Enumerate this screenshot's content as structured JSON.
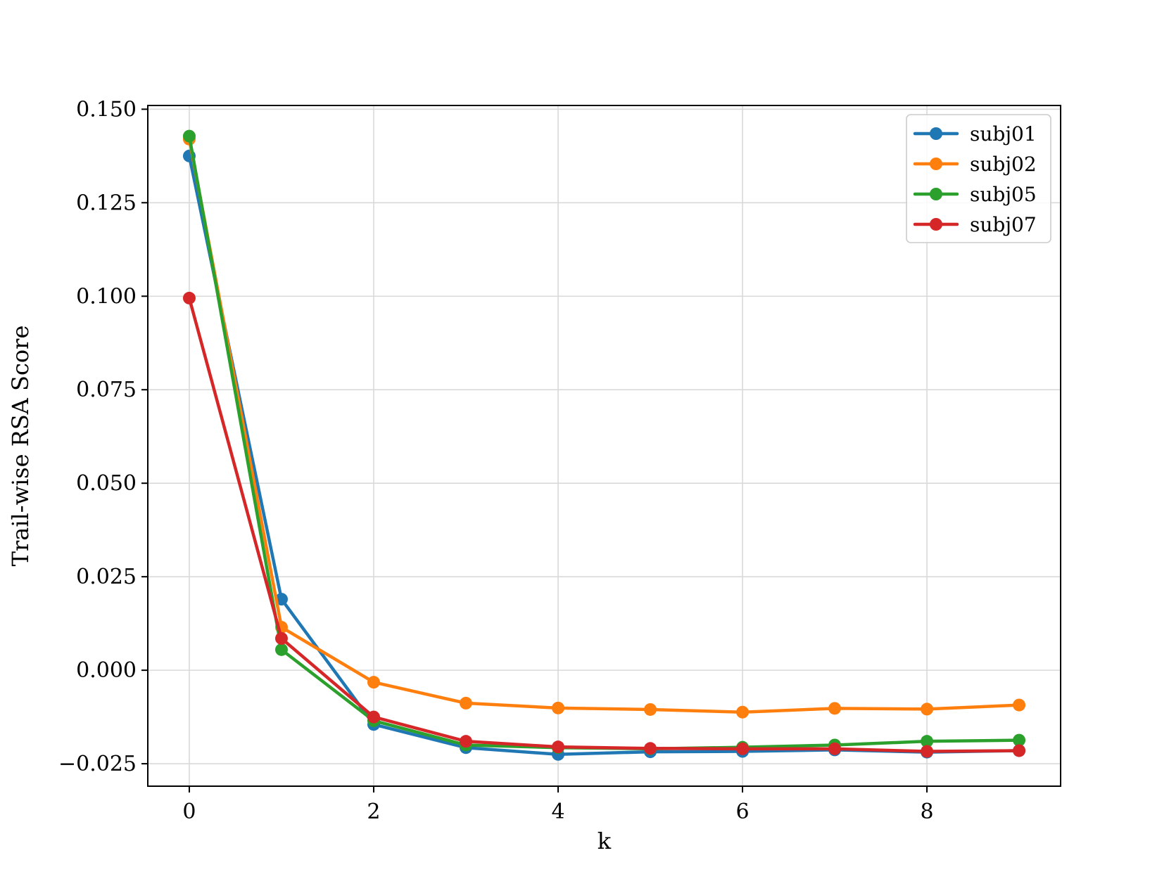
{
  "chart_data": {
    "type": "line",
    "title": "",
    "xlabel": "k",
    "ylabel": "Trail-wise RSA Score",
    "xlim": [
      -0.45,
      9.45
    ],
    "ylim": [
      -0.031,
      0.151
    ],
    "xticks": [
      0,
      2,
      4,
      6,
      8
    ],
    "xtick_labels": [
      "0",
      "2",
      "4",
      "6",
      "8"
    ],
    "yticks": [
      -0.025,
      0.0,
      0.025,
      0.05,
      0.075,
      0.1,
      0.125,
      0.15
    ],
    "ytick_labels": [
      "−0.025",
      "0.000",
      "0.025",
      "0.050",
      "0.075",
      "0.100",
      "0.125",
      "0.150"
    ],
    "grid": true,
    "legend_position": "top-right",
    "x": [
      0,
      1,
      2,
      3,
      4,
      5,
      6,
      7,
      8,
      9
    ],
    "series": [
      {
        "name": "subj01",
        "color": "#1f77b4",
        "values": [
          0.1375,
          0.019,
          -0.0145,
          -0.0207,
          -0.0225,
          -0.0218,
          -0.0217,
          -0.0213,
          -0.0219,
          -0.0215
        ]
      },
      {
        "name": "subj02",
        "color": "#ff7f0e",
        "values": [
          0.142,
          0.0115,
          -0.0032,
          -0.0088,
          -0.0101,
          -0.0105,
          -0.0112,
          -0.0102,
          -0.0104,
          -0.0093
        ]
      },
      {
        "name": "subj05",
        "color": "#2ca02c",
        "values": [
          0.1428,
          0.0055,
          -0.0135,
          -0.02,
          -0.0207,
          -0.021,
          -0.0206,
          -0.02,
          -0.019,
          -0.0187
        ]
      },
      {
        "name": "subj07",
        "color": "#d62728",
        "values": [
          0.0995,
          0.0085,
          -0.0125,
          -0.019,
          -0.0205,
          -0.0209,
          -0.021,
          -0.021,
          -0.0217,
          -0.0215
        ]
      }
    ]
  }
}
